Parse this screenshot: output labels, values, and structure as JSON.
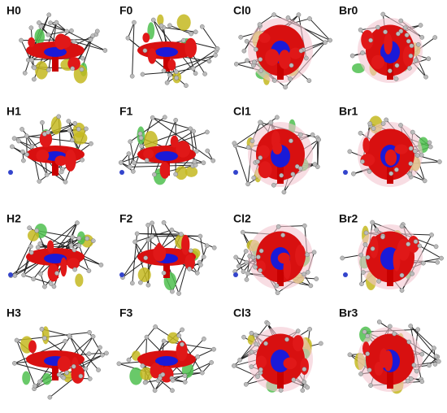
{
  "panels": [
    "H0",
    "F0",
    "Cl0",
    "Br0",
    "H1",
    "F1",
    "Cl1",
    "Br1",
    "H2",
    "F2",
    "Cl2",
    "Br2",
    "H3",
    "F3",
    "Cl3",
    "Br3"
  ]
}
